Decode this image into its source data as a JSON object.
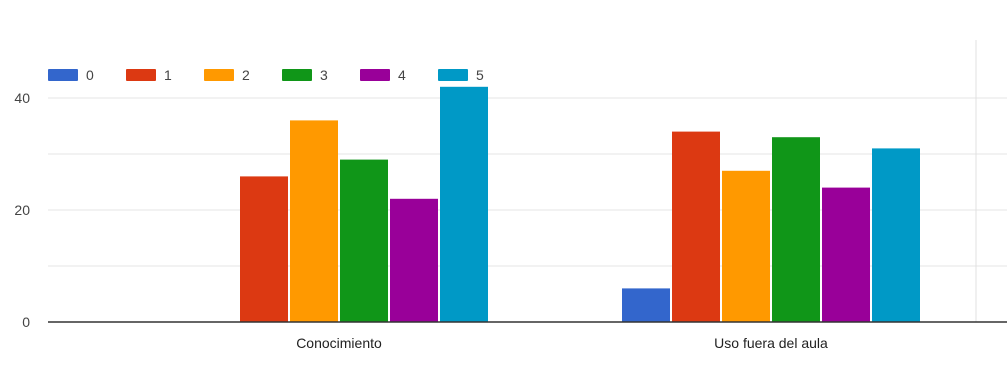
{
  "chart_data": {
    "type": "bar",
    "title": "",
    "xlabel": "",
    "ylabel": "",
    "categories": [
      "Conocimiento",
      "Uso fuera del aula"
    ],
    "series": [
      {
        "name": "0",
        "color": "#3366cc",
        "values": [
          0,
          6
        ]
      },
      {
        "name": "1",
        "color": "#dc3912",
        "values": [
          26,
          34
        ]
      },
      {
        "name": "2",
        "color": "#ff9900",
        "values": [
          36,
          27
        ]
      },
      {
        "name": "3",
        "color": "#109618",
        "values": [
          29,
          33
        ]
      },
      {
        "name": "4",
        "color": "#990099",
        "values": [
          22,
          24
        ]
      },
      {
        "name": "5",
        "color": "#0099c6",
        "values": [
          42,
          31
        ]
      }
    ],
    "ylim": [
      0,
      40
    ],
    "yticks": [
      0,
      20,
      40
    ],
    "grid": true,
    "legend_position": "top-left"
  }
}
